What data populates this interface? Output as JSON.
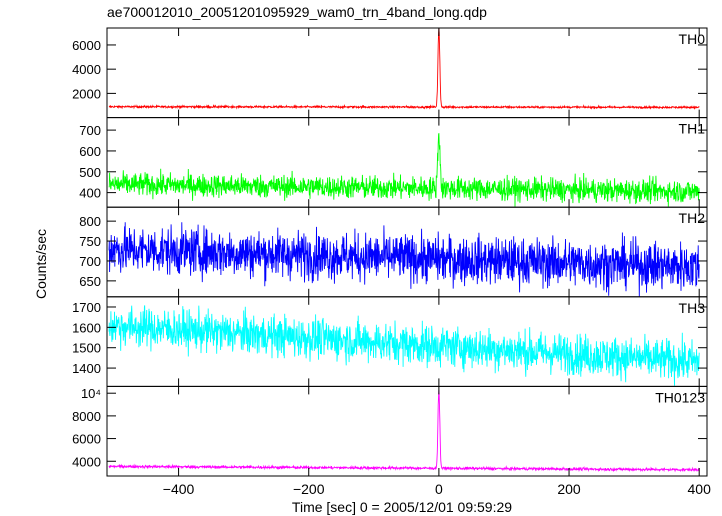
{
  "chart_data": {
    "type": "line",
    "title": "ae700012010_20051201095929_wam0_trn_4band_long.qdp",
    "xlabel": "Time [sec] 0 = 2005/12/01 09:59:29",
    "ylabel": "Counts/sec",
    "xlim": [
      -510,
      412
    ],
    "x_ticks": [
      -400,
      -200,
      0,
      200,
      400
    ],
    "x_tick_labels": [
      "−400",
      "−200",
      "0",
      "200",
      "400"
    ],
    "panels": [
      {
        "name": "TH0",
        "color": "#ff0000",
        "ylim": [
          0,
          7400
        ],
        "y_ticks": [
          2000,
          4000,
          6000
        ],
        "y_tick_labels": [
          "2000",
          "4000",
          "6000"
        ],
        "baseline_start": 900,
        "baseline_end": 850,
        "noise": 40,
        "peak": {
          "t": 0,
          "value": 7400,
          "width": 2
        }
      },
      {
        "name": "TH1",
        "color": "#00ff00",
        "ylim": [
          330,
          760
        ],
        "y_ticks": [
          400,
          500,
          600,
          700
        ],
        "y_tick_labels": [
          "400",
          "500",
          "600",
          "700"
        ],
        "baseline_start": 440,
        "baseline_end": 405,
        "noise": 28,
        "peak": {
          "t": 0,
          "value": 700,
          "width": 2.5
        }
      },
      {
        "name": "TH2",
        "color": "#0000ff",
        "ylim": [
          610,
          835
        ],
        "y_ticks": [
          650,
          700,
          750,
          800
        ],
        "y_tick_labels": [
          "650",
          "700",
          "750",
          "800"
        ],
        "baseline_start": 730,
        "baseline_end": 685,
        "noise": 30,
        "peak": null
      },
      {
        "name": "TH3",
        "color": "#00ffff",
        "ylim": [
          1310,
          1750
        ],
        "y_ticks": [
          1400,
          1500,
          1600,
          1700
        ],
        "y_tick_labels": [
          "1400",
          "1500",
          "1600",
          "1700"
        ],
        "baseline_start": 1610,
        "baseline_end": 1430,
        "noise": 50,
        "peak": null
      },
      {
        "name": "TH0123",
        "color": "#ff00ff",
        "ylim": [
          2700,
          10600
        ],
        "y_ticks": [
          4000,
          6000,
          8000,
          10000
        ],
        "y_tick_labels": [
          "4000",
          "6000",
          "8000",
          "10⁴"
        ],
        "baseline_start": 3550,
        "baseline_end": 3250,
        "noise": 60,
        "peak": {
          "t": 0,
          "value": 10500,
          "width": 2
        }
      }
    ],
    "grid": false,
    "legend": "panel labels at top-right"
  }
}
